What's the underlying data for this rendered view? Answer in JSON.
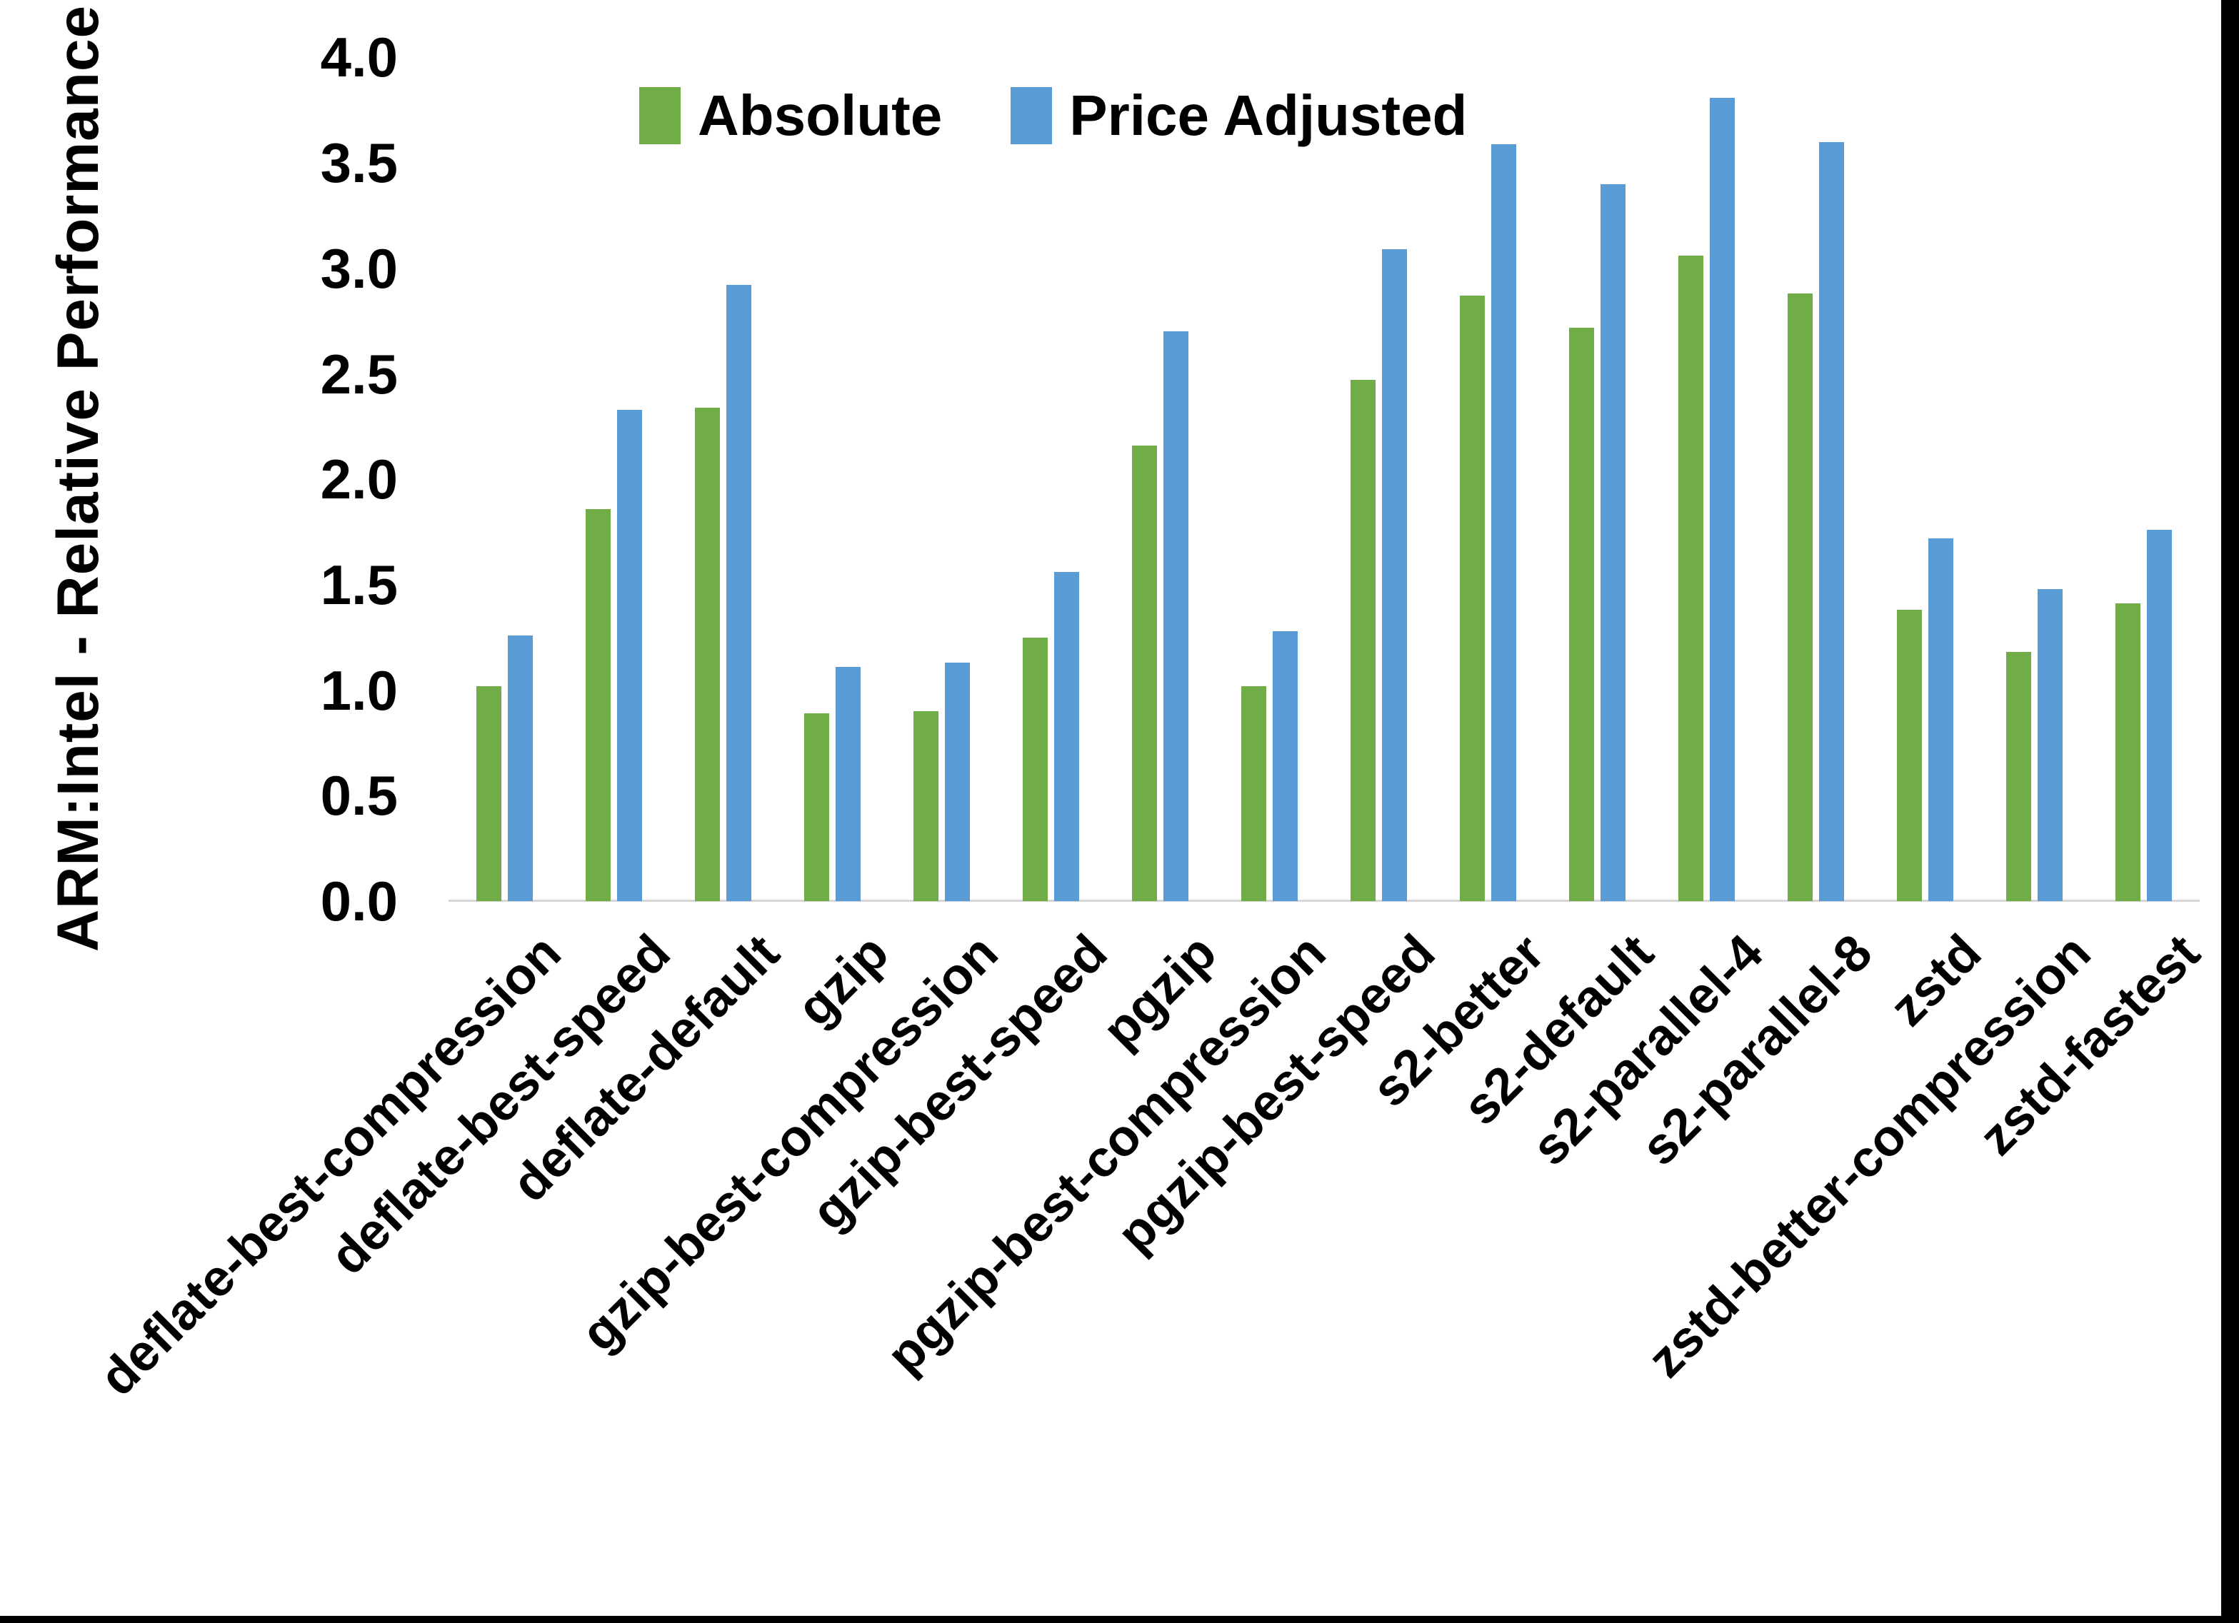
{
  "chart_data": {
    "type": "bar",
    "title": "",
    "ylabel": "ARM:Intel - Relative Performance",
    "xlabel": "",
    "ylim": [
      0.0,
      4.0
    ],
    "ytick_step": 0.5,
    "ytick_labels": [
      "0.0",
      "0.5",
      "1.0",
      "1.5",
      "2.0",
      "2.5",
      "3.0",
      "3.5",
      "4.0"
    ],
    "grid": false,
    "legend_position": "top-center",
    "background": "#ffffff",
    "axis_line_color": "#d6d6d6",
    "categories": [
      "deflate-best-compression",
      "deflate-best-speed",
      "deflate-default",
      "gzip",
      "gzip-best-compression",
      "gzip-best-speed",
      "pgzip",
      "pgzip-best-compression",
      "pgzip-best-speed",
      "s2-better",
      "s2-default",
      "s2-parallel-4",
      "s2-parallel-8",
      "zstd",
      "zstd-better-compression",
      "zstd-fastest"
    ],
    "series": [
      {
        "name": "Absolute",
        "color": "#70AD47",
        "values": [
          1.02,
          1.86,
          2.34,
          0.89,
          0.9,
          1.25,
          2.16,
          1.02,
          2.47,
          2.87,
          2.72,
          3.06,
          2.88,
          1.38,
          1.18,
          1.41
        ]
      },
      {
        "name": "Price Adjusted",
        "color": "#5B9BD5",
        "values": [
          1.26,
          2.33,
          2.92,
          1.11,
          1.13,
          1.56,
          2.7,
          1.28,
          3.09,
          3.59,
          3.4,
          3.81,
          3.6,
          1.72,
          1.48,
          1.76
        ]
      }
    ]
  }
}
